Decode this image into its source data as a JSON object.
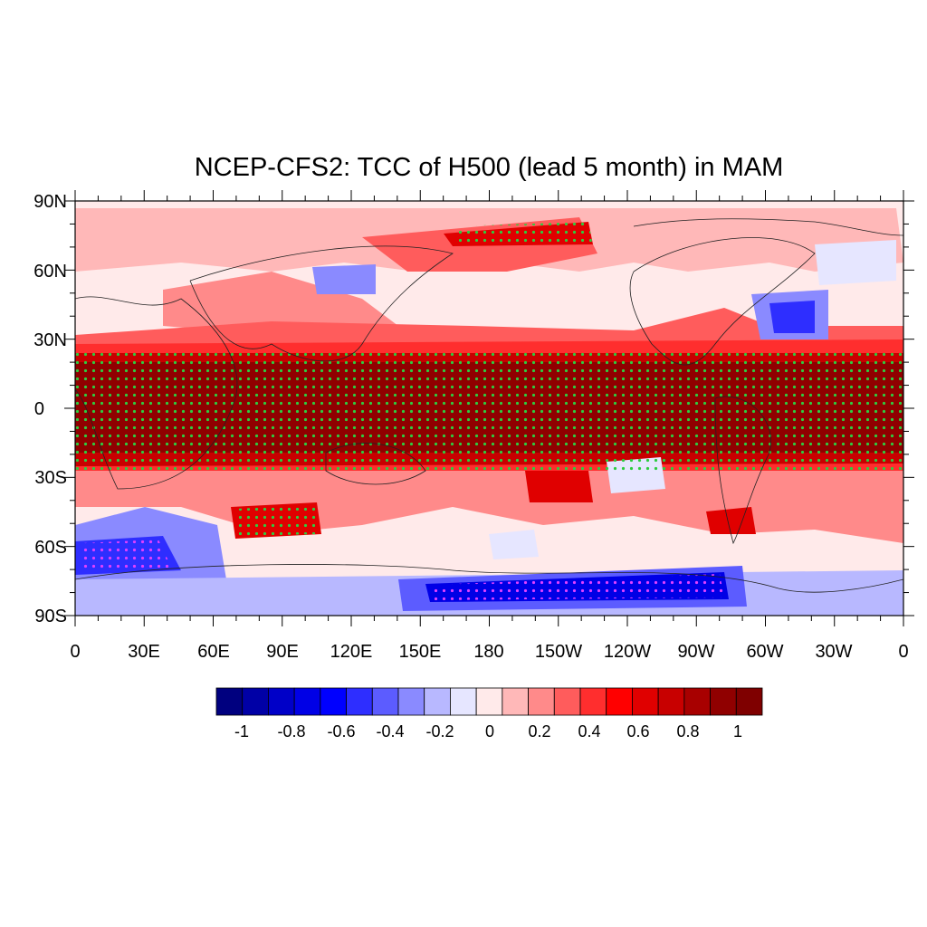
{
  "title": "NCEP-CFS2: TCC of H500 (lead 5 month) in MAM",
  "lat_labels": [
    "90N",
    "60N",
    "30N",
    "0",
    "30S",
    "60S",
    "90S"
  ],
  "lon_labels": [
    "0",
    "30E",
    "60E",
    "90E",
    "120E",
    "150E",
    "180",
    "150W",
    "120W",
    "90W",
    "60W",
    "30W",
    "0"
  ],
  "colorbar": {
    "colors": [
      "#00007f",
      "#0000a6",
      "#0000c8",
      "#0000e6",
      "#0000ff",
      "#2e2eff",
      "#5c5cff",
      "#8a8aff",
      "#b8b8ff",
      "#e6e6ff",
      "#ffeaea",
      "#ffb8b8",
      "#ff8a8a",
      "#ff5c5c",
      "#ff2e2e",
      "#ff0000",
      "#e00000",
      "#c80000",
      "#a80000",
      "#900000",
      "#7f0000"
    ],
    "labels": [
      "-1",
      "-0.8",
      "-0.6",
      "-0.4",
      "-0.2",
      "0",
      "0.2",
      "0.4",
      "0.6",
      "0.8",
      "1"
    ]
  },
  "stipple_legend": "green/magenta dots mark significant correlation",
  "regions": [
    {
      "name": "tropical-band-high-correlation",
      "level": 0.9
    },
    {
      "name": "antarctic-negative-correlation",
      "level": -0.6
    },
    {
      "name": "south-atlantic-negative",
      "level": -0.6
    },
    {
      "name": "north-atlantic-negative",
      "level": -0.5
    },
    {
      "name": "north-pacific-positive",
      "level": 0.5
    }
  ]
}
